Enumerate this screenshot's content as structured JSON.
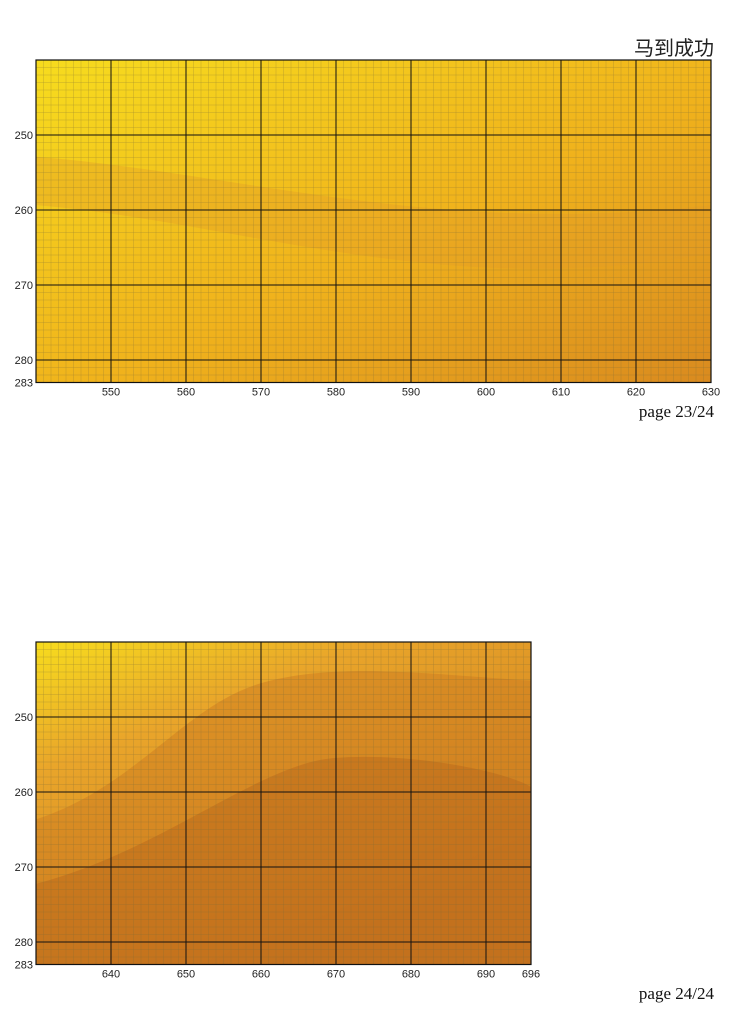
{
  "title": "马到成功",
  "pages": [
    {
      "page_label": "page 23/24",
      "x_ticks": [
        "550",
        "560",
        "570",
        "580",
        "590",
        "600",
        "610",
        "620",
        "630"
      ],
      "y_ticks": [
        "250",
        "260",
        "270",
        "280",
        "283"
      ],
      "x_range": [
        541,
        630
      ],
      "y_range": [
        240,
        283
      ],
      "colors": {
        "light": "#f7dc1e",
        "mid": "#f0b21c",
        "dark": "#d98a1f"
      }
    },
    {
      "page_label": "page 24/24",
      "x_ticks": [
        "640",
        "650",
        "660",
        "670",
        "680",
        "690",
        "696"
      ],
      "y_ticks": [
        "250",
        "260",
        "270",
        "280",
        "283"
      ],
      "x_range": [
        631,
        696
      ],
      "y_range": [
        240,
        283
      ],
      "colors": {
        "light": "#f7dc1e",
        "mid": "#e9a52a",
        "dark": "#c8731d"
      }
    }
  ]
}
